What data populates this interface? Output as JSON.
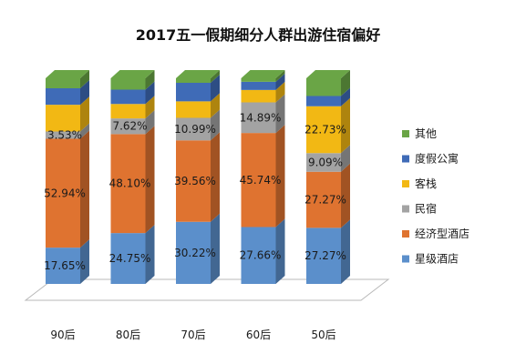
{
  "chart_data": {
    "type": "bar",
    "stacked": true,
    "style": "3d-column",
    "title": "2017五一假期细分人群出游住宿偏好",
    "xlabel": "",
    "ylabel": "",
    "categories": [
      "90后",
      "80后",
      "70后",
      "60后",
      "50后"
    ],
    "ylim": [
      0,
      100
    ],
    "grid": false,
    "legend_position": "right",
    "series": [
      {
        "name": "星级酒店",
        "color": "#5b8fcb",
        "values": [
          17.65,
          24.75,
          30.22,
          27.66,
          27.27
        ],
        "labels": [
          "17.65%",
          "24.75%",
          "30.22%",
          "27.66%",
          "27.27%"
        ]
      },
      {
        "name": "经济型酒店",
        "color": "#df7330",
        "values": [
          52.94,
          48.1,
          39.56,
          45.74,
          27.27
        ],
        "labels": [
          "52.94%",
          "48.10%",
          "39.56%",
          "45.74%",
          "27.27%"
        ]
      },
      {
        "name": "民宿",
        "color": "#a3a3a3",
        "values": [
          3.53,
          7.62,
          10.99,
          14.89,
          9.09
        ],
        "labels": [
          "3.53%",
          "7.62%",
          "10.99%",
          "14.89%",
          "9.09%"
        ]
      },
      {
        "name": "客栈",
        "color": "#f2b814",
        "values": [
          13.0,
          7.0,
          8.0,
          6.0,
          22.73
        ],
        "labels": [
          "",
          "",
          "",
          "",
          "22.73%"
        ]
      },
      {
        "name": "度假公寓",
        "color": "#3f6bb7",
        "values": [
          8.0,
          7.0,
          9.0,
          4.0,
          5.0
        ],
        "labels": [
          "",
          "",
          "",
          "",
          ""
        ]
      },
      {
        "name": "其他",
        "color": "#6aa546",
        "values": [
          4.88,
          5.53,
          2.23,
          1.71,
          8.64
        ],
        "labels": [
          "",
          "",
          "",
          "",
          ""
        ]
      }
    ],
    "legend_order": [
      "其他",
      "度假公寓",
      "客栈",
      "民宿",
      "经济型酒店",
      "星级酒店"
    ]
  }
}
